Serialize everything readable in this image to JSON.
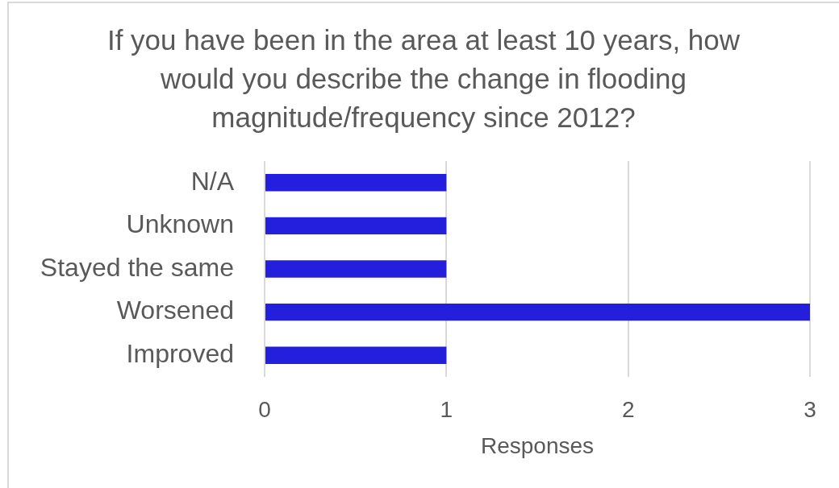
{
  "chart_data": {
    "type": "bar",
    "orientation": "horizontal",
    "title": "If you have been in the area at least 10 years, how would you describe the change in flooding magnitude/frequency since 2012?",
    "xlabel": "Responses",
    "categories": [
      "N/A",
      "Unknown",
      "Stayed the same",
      "Worsened",
      "Improved"
    ],
    "values": [
      1,
      1,
      1,
      3,
      1
    ],
    "color": "#231fdc",
    "xlim": [
      0,
      3
    ],
    "xticks": [
      0,
      1,
      2,
      3
    ],
    "grid": "x"
  }
}
